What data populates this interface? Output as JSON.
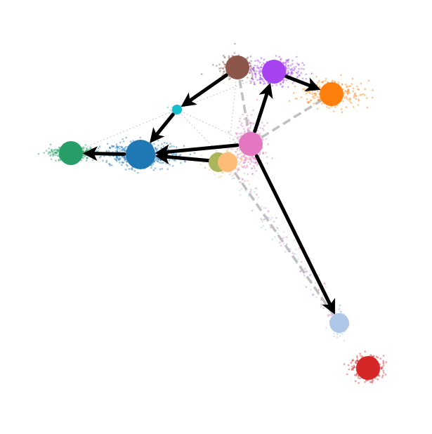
{
  "graph": {
    "nodes": [
      {
        "id": "brown",
        "color": "#8c564b",
        "size": "large"
      },
      {
        "id": "purple",
        "color": "#a742f0",
        "size": "large"
      },
      {
        "id": "orange",
        "color": "#ff7f0e",
        "size": "large"
      },
      {
        "id": "cyan",
        "color": "#17becf",
        "size": "small"
      },
      {
        "id": "pink",
        "color": "#e377c2",
        "size": "large"
      },
      {
        "id": "green",
        "color": "#279e68",
        "size": "large"
      },
      {
        "id": "blue",
        "color": "#1f77b4",
        "size": "xlarge"
      },
      {
        "id": "olive",
        "color": "#aab65a",
        "size": "medium"
      },
      {
        "id": "peach",
        "color": "#ffbb78",
        "size": "medium"
      },
      {
        "id": "lightblue",
        "color": "#aec7e8",
        "size": "medium"
      },
      {
        "id": "red",
        "color": "#d62728",
        "size": "large"
      }
    ],
    "arrows": [
      {
        "from": "brown",
        "to": "cyan"
      },
      {
        "from": "cyan",
        "to": "blue"
      },
      {
        "from": "purple",
        "to": "orange"
      },
      {
        "from": "pink",
        "to": "purple"
      },
      {
        "from": "pink",
        "to": "blue"
      },
      {
        "from": "peach",
        "to": "blue"
      },
      {
        "from": "blue",
        "to": "green"
      },
      {
        "from": "pink",
        "to": "lightblue"
      }
    ],
    "faint_edges": [
      {
        "from": "brown",
        "to": "pink",
        "style": "dashed"
      },
      {
        "from": "pink",
        "to": "orange",
        "style": "dashed"
      },
      {
        "from": "peach",
        "to": "lightblue",
        "style": "dashed"
      },
      {
        "from": "cyan",
        "to": "pink",
        "style": "dotted"
      },
      {
        "from": "cyan",
        "to": "peach",
        "style": "dotted"
      },
      {
        "from": "green",
        "to": "cyan",
        "style": "dotted"
      },
      {
        "from": "brown",
        "to": "peach",
        "style": "dotted"
      },
      {
        "from": "cyan",
        "to": "purple",
        "style": "dotted"
      }
    ]
  }
}
